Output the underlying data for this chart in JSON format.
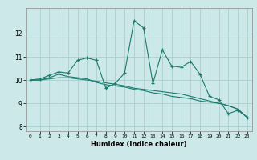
{
  "xlabel": "Humidex (Indice chaleur)",
  "x": [
    0,
    1,
    2,
    3,
    4,
    5,
    6,
    7,
    8,
    9,
    10,
    11,
    12,
    13,
    14,
    15,
    16,
    17,
    18,
    19,
    20,
    21,
    22,
    23
  ],
  "line1_y": [
    10.0,
    10.05,
    10.2,
    10.35,
    10.3,
    10.85,
    10.95,
    10.85,
    9.65,
    9.85,
    10.3,
    12.55,
    12.25,
    9.85,
    11.3,
    10.6,
    10.55,
    10.8,
    10.25,
    9.3,
    9.15,
    8.55,
    8.7,
    8.4
  ],
  "line2_y": [
    10.0,
    10.0,
    10.1,
    10.25,
    10.15,
    10.1,
    10.05,
    9.9,
    9.8,
    9.75,
    9.7,
    9.6,
    9.55,
    9.45,
    9.4,
    9.3,
    9.25,
    9.2,
    9.1,
    9.05,
    9.0,
    8.9,
    8.75,
    8.4
  ],
  "line3_y": [
    10.0,
    10.0,
    10.05,
    10.1,
    10.1,
    10.05,
    10.0,
    9.95,
    9.88,
    9.82,
    9.75,
    9.65,
    9.6,
    9.55,
    9.5,
    9.45,
    9.4,
    9.3,
    9.2,
    9.1,
    9.0,
    8.9,
    8.75,
    8.4
  ],
  "color": "#1a7a6e",
  "bg_color": "#cce8e8",
  "grid_color": "#aacece",
  "ylim": [
    7.8,
    13.1
  ],
  "xlim": [
    -0.5,
    23.5
  ],
  "yticks": [
    8,
    9,
    10,
    11,
    12
  ],
  "xticks": [
    0,
    1,
    2,
    3,
    4,
    5,
    6,
    7,
    8,
    9,
    10,
    11,
    12,
    13,
    14,
    15,
    16,
    17,
    18,
    19,
    20,
    21,
    22,
    23
  ]
}
